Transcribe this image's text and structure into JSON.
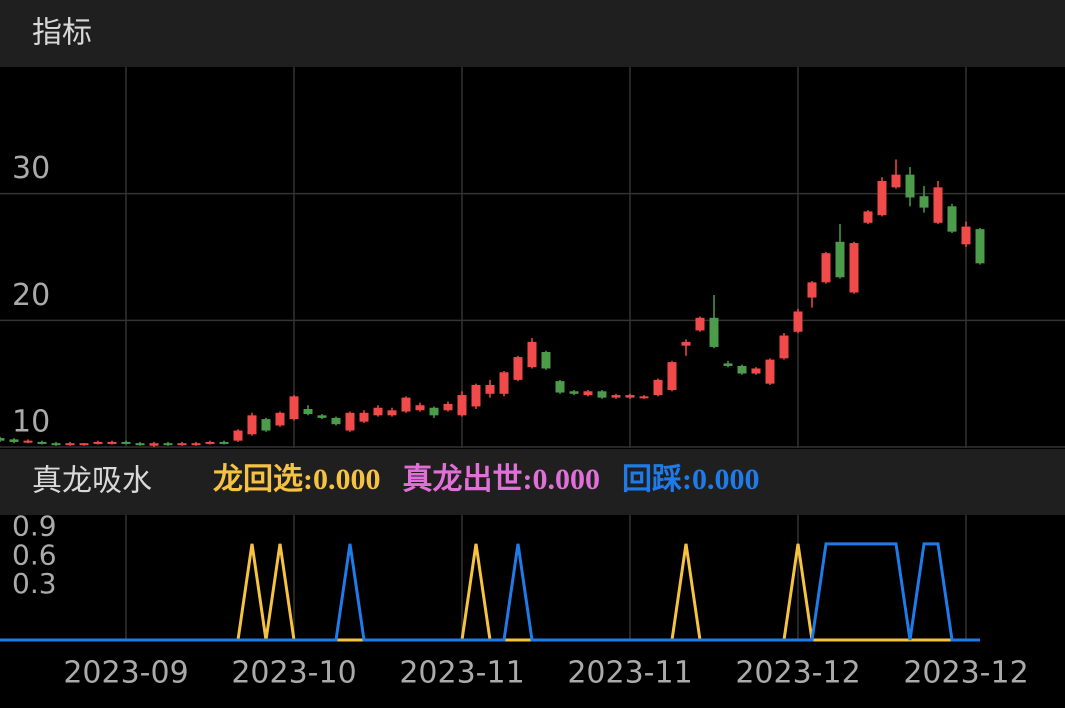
{
  "header": {
    "title": "指标"
  },
  "chart_data": [
    {
      "type": "candlestick",
      "up_color": "#f04a4a",
      "down_color": "#4c9c4c",
      "ylim": [
        10,
        40
      ],
      "yticks": [
        10,
        20,
        30
      ],
      "grid": true,
      "open": [
        10.7,
        10.6,
        10.4,
        10.4,
        10.3,
        10.2,
        10.2,
        10.3,
        10.3,
        10.4,
        10.3,
        10.1,
        10.3,
        10.2,
        10.2,
        10.3,
        10.4,
        10.5,
        11.0,
        12.2,
        11.7,
        12.2,
        13.0,
        12.5,
        12.3,
        11.3,
        12.0,
        12.5,
        12.5,
        12.8,
        12.9,
        13.1,
        12.9,
        12.5,
        13.2,
        14.2,
        14.2,
        15.3,
        16.3,
        17.5,
        15.2,
        14.4,
        14.1,
        14.4,
        13.9,
        13.9,
        13.9,
        14.1,
        14.5,
        18.0,
        19.2,
        20.2,
        16.6,
        16.4,
        15.8,
        15.0,
        17.0,
        19.1,
        21.8,
        23.0,
        26.2,
        22.2,
        27.7,
        28.3,
        30.5,
        31.5,
        29.8,
        27.7,
        29.0,
        26.0,
        27.2
      ],
      "high": [
        10.8,
        10.7,
        10.6,
        10.5,
        10.4,
        10.4,
        10.3,
        10.5,
        10.5,
        10.5,
        10.4,
        10.4,
        10.4,
        10.4,
        10.4,
        10.5,
        10.5,
        11.4,
        12.7,
        12.3,
        12.8,
        14.1,
        13.3,
        12.6,
        12.4,
        12.8,
        12.9,
        13.3,
        13.1,
        14.0,
        13.5,
        13.2,
        13.6,
        14.4,
        15.0,
        15.3,
        16.0,
        17.2,
        18.6,
        17.6,
        15.3,
        14.5,
        14.5,
        14.5,
        14.2,
        14.2,
        14.1,
        15.4,
        16.8,
        18.5,
        20.3,
        22.0,
        16.8,
        16.5,
        16.3,
        17.0,
        19.0,
        20.9,
        23.1,
        25.4,
        27.6,
        26.2,
        28.7,
        31.3,
        32.7,
        32.1,
        30.6,
        31.0,
        29.2,
        27.8,
        27.3
      ],
      "low": [
        10.4,
        10.3,
        10.3,
        10.2,
        10.1,
        10.1,
        10.1,
        10.2,
        10.2,
        10.2,
        10.1,
        10.0,
        10.1,
        10.1,
        10.1,
        10.2,
        10.2,
        10.4,
        10.9,
        11.2,
        11.6,
        12.1,
        12.5,
        12.2,
        11.7,
        11.2,
        11.9,
        12.4,
        12.4,
        12.7,
        12.8,
        12.3,
        12.8,
        12.4,
        13.0,
        13.9,
        14.0,
        15.2,
        16.2,
        16.1,
        14.2,
        14.1,
        14.0,
        13.8,
        13.8,
        13.8,
        13.8,
        14.0,
        14.4,
        17.2,
        19.1,
        17.8,
        16.3,
        15.7,
        15.7,
        14.9,
        16.9,
        19.0,
        21.0,
        22.9,
        23.3,
        22.1,
        27.6,
        28.2,
        30.4,
        29.0,
        28.5,
        27.6,
        26.9,
        25.8,
        24.4
      ],
      "close": [
        10.5,
        10.4,
        10.5,
        10.3,
        10.2,
        10.3,
        10.3,
        10.4,
        10.4,
        10.3,
        10.2,
        10.3,
        10.2,
        10.3,
        10.3,
        10.4,
        10.3,
        11.3,
        12.5,
        11.3,
        12.7,
        14.0,
        12.6,
        12.3,
        11.8,
        12.7,
        12.7,
        13.1,
        12.9,
        13.9,
        13.3,
        12.5,
        13.4,
        14.1,
        14.9,
        14.9,
        15.9,
        17.1,
        18.3,
        16.2,
        14.3,
        14.2,
        14.4,
        13.9,
        14.1,
        14.1,
        14.0,
        15.3,
        16.7,
        18.3,
        20.2,
        17.9,
        16.4,
        15.8,
        16.2,
        16.9,
        18.8,
        20.7,
        23.0,
        25.3,
        23.4,
        26.1,
        28.6,
        31.0,
        31.5,
        29.7,
        28.9,
        30.5,
        27.0,
        27.4,
        24.5
      ]
    },
    {
      "type": "line",
      "title": "真龙吸水",
      "ylim": [
        0,
        1.3
      ],
      "yticks": [
        0.3,
        0.6,
        0.9
      ],
      "categories": [
        null,
        null,
        null,
        null,
        null,
        null,
        null,
        null,
        null,
        "2023-09",
        null,
        null,
        null,
        null,
        null,
        null,
        null,
        null,
        null,
        null,
        null,
        "2023-10",
        null,
        null,
        null,
        null,
        null,
        null,
        null,
        null,
        null,
        null,
        null,
        "2023-11",
        null,
        null,
        null,
        null,
        null,
        null,
        null,
        null,
        null,
        null,
        null,
        "2023-11",
        null,
        null,
        null,
        null,
        null,
        null,
        null,
        null,
        null,
        null,
        null,
        "2023-12",
        null,
        null,
        null,
        null,
        null,
        null,
        null,
        null,
        null,
        null,
        null,
        "2023-12",
        null
      ],
      "series": [
        {
          "name": "龙回选:0.000",
          "color": "#f5c242",
          "values": [
            0,
            0,
            0,
            0,
            0,
            0,
            0,
            0,
            0,
            0,
            0,
            0,
            0,
            0,
            0,
            0,
            0,
            0,
            1,
            0,
            1,
            0,
            0,
            0,
            0,
            0,
            0,
            0,
            0,
            0,
            0,
            0,
            0,
            0,
            1,
            0,
            0,
            0,
            0,
            0,
            0,
            0,
            0,
            0,
            0,
            0,
            0,
            0,
            0,
            1,
            0,
            0,
            0,
            0,
            0,
            0,
            0,
            1,
            0,
            0,
            0,
            0,
            0,
            0,
            0,
            0,
            0,
            0,
            0,
            0,
            0
          ]
        },
        {
          "name": "真龙出世:0.000",
          "color": "#e070d8",
          "values": [
            0,
            0,
            0,
            0,
            0,
            0,
            0,
            0,
            0,
            0,
            0,
            0,
            0,
            0,
            0,
            0,
            0,
            0,
            0,
            0,
            0,
            0,
            0,
            0,
            0,
            0,
            0,
            0,
            0,
            0,
            0,
            0,
            0,
            0,
            0,
            0,
            0,
            0,
            0,
            0,
            0,
            0,
            0,
            0,
            0,
            0,
            0,
            0,
            0,
            0,
            0,
            0,
            0,
            0,
            0,
            0,
            0,
            0,
            0,
            0,
            0,
            0,
            0,
            0,
            0,
            0,
            0,
            0,
            0,
            0,
            0
          ]
        },
        {
          "name": "回踩:0.000",
          "color": "#1e7be8",
          "values": [
            0,
            0,
            0,
            0,
            0,
            0,
            0,
            0,
            0,
            0,
            0,
            0,
            0,
            0,
            0,
            0,
            0,
            0,
            0,
            0,
            0,
            0,
            0,
            0,
            0,
            1,
            0,
            0,
            0,
            0,
            0,
            0,
            0,
            0,
            0,
            0,
            0,
            1,
            0,
            0,
            0,
            0,
            0,
            0,
            0,
            0,
            0,
            0,
            0,
            0,
            0,
            0,
            0,
            0,
            0,
            0,
            0,
            0,
            0,
            1,
            1,
            1,
            1,
            1,
            1,
            0,
            1,
            1,
            0,
            0,
            0
          ]
        }
      ]
    }
  ]
}
